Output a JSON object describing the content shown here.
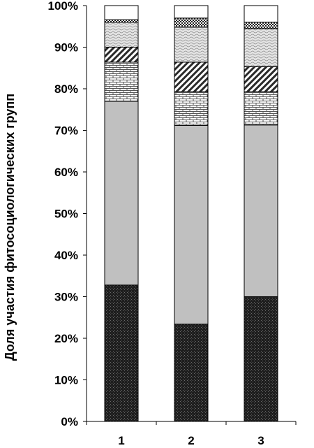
{
  "chart_data": {
    "type": "bar",
    "stacked": true,
    "percent_stacked": true,
    "categories": [
      "1",
      "2",
      "3"
    ],
    "ylabel": "Доля участия фитосоциологических групп",
    "xlabel": "",
    "ylim": [
      0,
      100
    ],
    "yticks": [
      "0%",
      "10%",
      "20%",
      "30%",
      "40%",
      "50%",
      "60%",
      "70%",
      "80%",
      "90%",
      "100%"
    ],
    "grid": false,
    "legend": "none",
    "series": [
      {
        "pattern": "dense-dots-dark",
        "values": [
          32.8,
          23.4,
          30.0
        ]
      },
      {
        "pattern": "solid-light-gray",
        "values": [
          44.2,
          47.8,
          41.3
        ]
      },
      {
        "pattern": "bricks",
        "values": [
          9.4,
          8.1,
          8.0
        ]
      },
      {
        "pattern": "diagonal-stripes",
        "values": [
          3.6,
          7.1,
          6.0
        ]
      },
      {
        "pattern": "waves",
        "values": [
          6.0,
          8.4,
          9.2
        ]
      },
      {
        "pattern": "checker",
        "values": [
          0.6,
          2.2,
          1.5
        ]
      },
      {
        "pattern": "white",
        "values": [
          3.4,
          3.0,
          4.0
        ]
      }
    ]
  }
}
